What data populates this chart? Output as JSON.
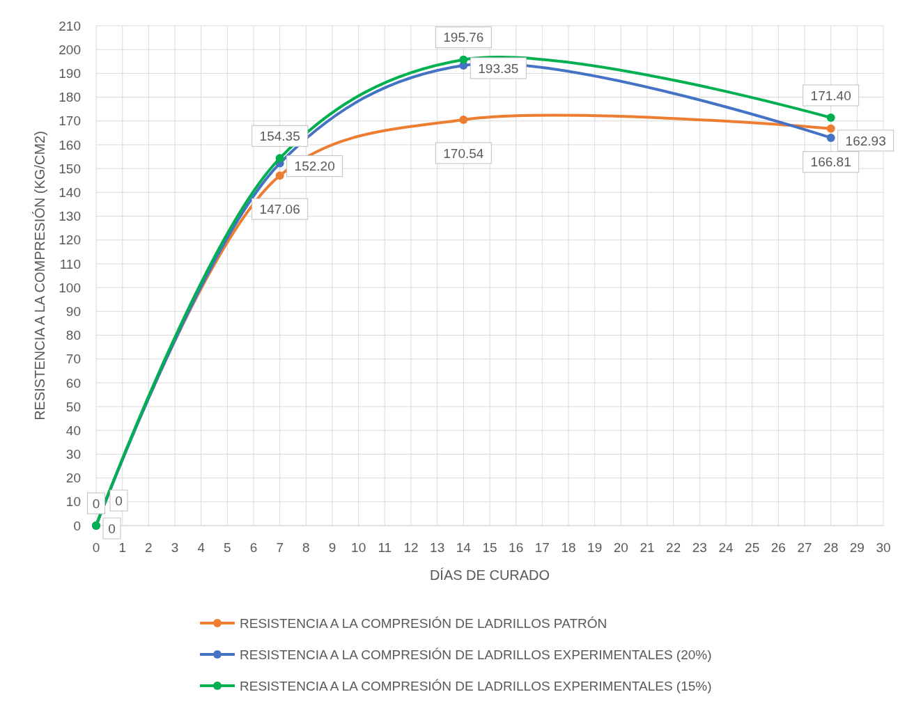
{
  "chart_data": {
    "type": "line",
    "xlabel": "DÍAS DE CURADO",
    "ylabel": "RESISTENCIA A LA COMPRESIÓN (KG/CM2)",
    "x": [
      0,
      7,
      14,
      28
    ],
    "series": [
      {
        "name": "RESISTENCIA A LA COMPRESIÓN DE LADRILLOS PATRÓN",
        "color": "#ed7d31",
        "values": [
          0,
          147.06,
          170.54,
          166.81
        ],
        "value_labels": [
          "0",
          "147.06",
          "170.54",
          "166.81"
        ]
      },
      {
        "name": "RESISTENCIA A LA COMPRESIÓN DE LADRILLOS EXPERIMENTALES (20%)",
        "color": "#4472c4",
        "values": [
          0,
          152.2,
          193.35,
          162.93
        ],
        "value_labels": [
          "0",
          "152.20",
          "193.35",
          "162.93"
        ]
      },
      {
        "name": "RESISTENCIA A LA COMPRESIÓN DE LADRILLOS EXPERIMENTALES (15%)",
        "color": "#00b050",
        "values": [
          0,
          154.35,
          195.76,
          171.4
        ],
        "value_labels": [
          "0",
          "154.35",
          "195.76",
          "171.40"
        ]
      }
    ],
    "xlim": [
      0,
      30
    ],
    "xticks": [
      0,
      1,
      2,
      3,
      4,
      5,
      6,
      7,
      8,
      9,
      10,
      11,
      12,
      13,
      14,
      15,
      16,
      17,
      18,
      19,
      20,
      21,
      22,
      23,
      24,
      25,
      26,
      27,
      28,
      29,
      30
    ],
    "ylim": [
      0,
      210
    ],
    "yticks": [
      0,
      10,
      20,
      30,
      40,
      50,
      60,
      70,
      80,
      90,
      100,
      110,
      120,
      130,
      140,
      150,
      160,
      170,
      180,
      190,
      200,
      210
    ],
    "grid": true,
    "legend": "bottom",
    "marker": "circle",
    "line_style": "solid"
  }
}
